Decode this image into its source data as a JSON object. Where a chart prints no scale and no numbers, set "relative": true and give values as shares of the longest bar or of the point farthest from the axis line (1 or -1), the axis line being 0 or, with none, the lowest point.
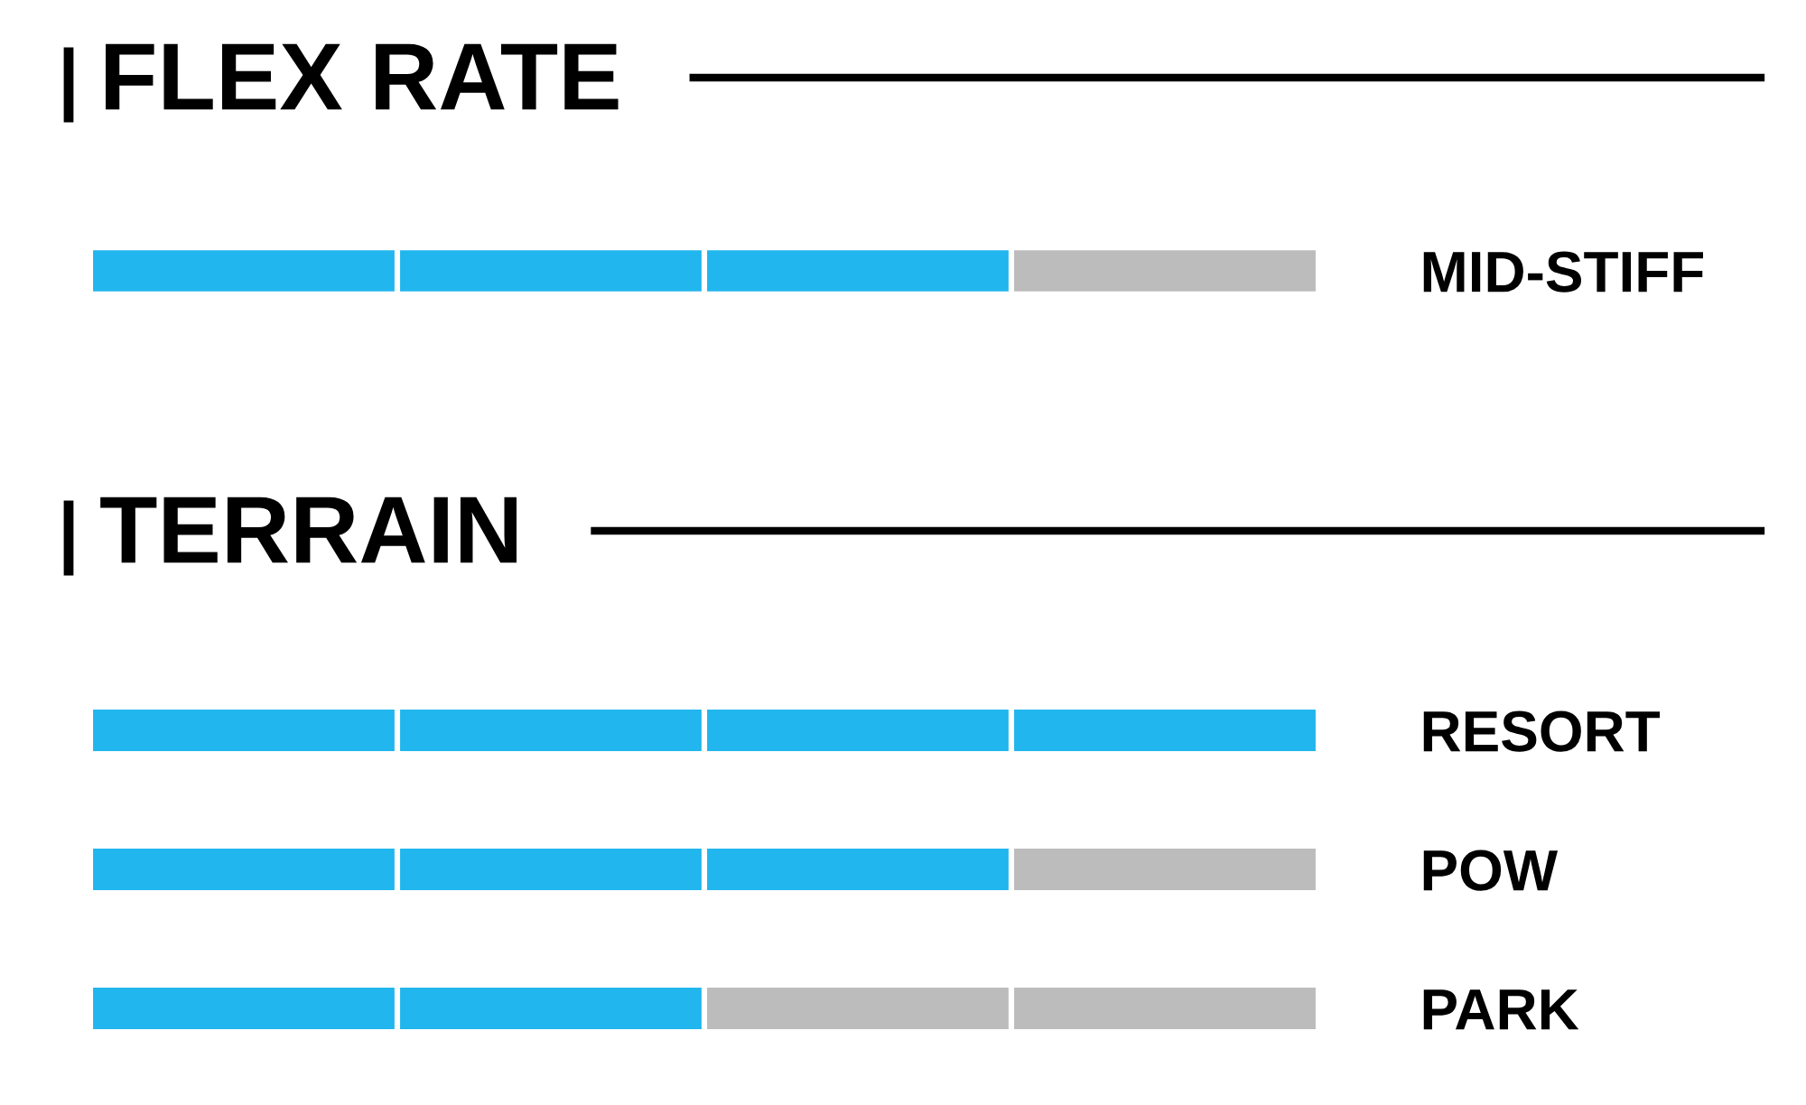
{
  "chart_data": [
    {
      "type": "bar",
      "title": "FLEX RATE",
      "orientation": "horizontal",
      "stacked": true,
      "relative": true,
      "tick_labels": "y",
      "categories": [
        "MID-STIFF"
      ],
      "series": [
        {
          "values": [
            0.25
          ],
          "colors": [
            "#21b6ed"
          ]
        },
        {
          "values": [
            0.25
          ],
          "colors": [
            "#21b6ed"
          ]
        },
        {
          "values": [
            0.25
          ],
          "colors": [
            "#21b6ed"
          ]
        },
        {
          "values": [
            0.25
          ],
          "colors": [
            "#bcbcbc"
          ]
        }
      ]
    },
    {
      "type": "bar",
      "title": "TERRAIN",
      "orientation": "horizontal",
      "stacked": true,
      "relative": true,
      "tick_labels": "y",
      "categories": [
        "RESORT",
        "POW",
        "PARK"
      ],
      "series": [
        {
          "values": [
            0.25,
            0.25,
            0.25
          ],
          "colors": [
            "#21b6ed",
            "#21b6ed",
            "#21b6ed"
          ]
        },
        {
          "values": [
            0.25,
            0.25,
            0.25
          ],
          "colors": [
            "#21b6ed",
            "#21b6ed",
            "#21b6ed"
          ]
        },
        {
          "values": [
            0.25,
            0.25,
            0.25
          ],
          "colors": [
            "#21b6ed",
            "#21b6ed",
            "#bcbcbc"
          ]
        },
        {
          "values": [
            0.25,
            0.25,
            0.25
          ],
          "colors": [
            "#21b6ed",
            "#bcbcbc",
            "#bcbcbc"
          ]
        }
      ]
    }
  ]
}
